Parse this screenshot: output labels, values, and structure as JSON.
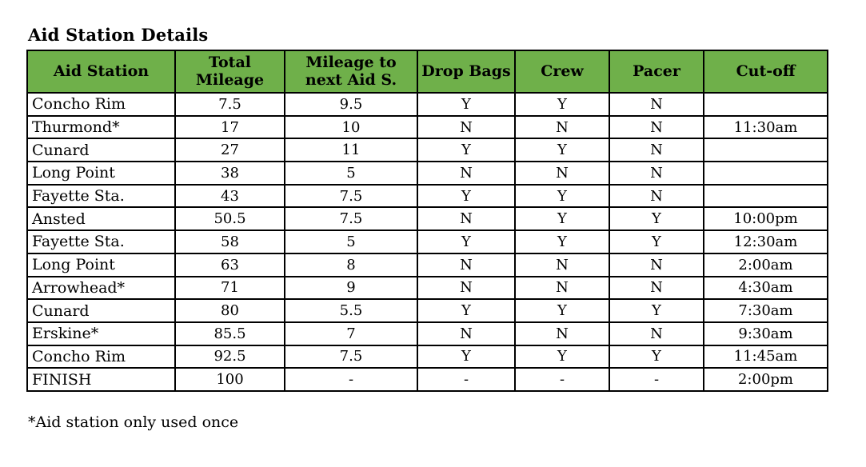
{
  "title": "Aid Station Details",
  "footnote": "*Aid station only used once",
  "colors": {
    "header_bg": "#6fb04a",
    "border": "#000000",
    "text": "#000000",
    "background": "#ffffff"
  },
  "table": {
    "columns": [
      "Aid Station",
      "Total Mileage",
      "Mileage to next Aid S.",
      "Drop Bags",
      "Crew",
      "Pacer",
      "Cut-off"
    ],
    "rows": [
      [
        "Concho Rim",
        "7.5",
        "9.5",
        "Y",
        "Y",
        "N",
        ""
      ],
      [
        "Thurmond*",
        "17",
        "10",
        "N",
        "N",
        "N",
        "11:30am"
      ],
      [
        "Cunard",
        "27",
        "11",
        "Y",
        "Y",
        "N",
        ""
      ],
      [
        "Long Point",
        "38",
        "5",
        "N",
        "N",
        "N",
        ""
      ],
      [
        "Fayette Sta.",
        "43",
        "7.5",
        "Y",
        "Y",
        "N",
        ""
      ],
      [
        "Ansted",
        "50.5",
        "7.5",
        "N",
        "Y",
        "Y",
        "10:00pm"
      ],
      [
        "Fayette Sta.",
        "58",
        "5",
        "Y",
        "Y",
        "Y",
        "12:30am"
      ],
      [
        "Long Point",
        "63",
        "8",
        "N",
        "N",
        "N",
        "2:00am"
      ],
      [
        "Arrowhead*",
        "71",
        "9",
        "N",
        "N",
        "N",
        "4:30am"
      ],
      [
        "Cunard",
        "80",
        "5.5",
        "Y",
        "Y",
        "Y",
        "7:30am"
      ],
      [
        "Erskine*",
        "85.5",
        "7",
        "N",
        "N",
        "N",
        "9:30am"
      ],
      [
        "Concho Rim",
        "92.5",
        "7.5",
        "Y",
        "Y",
        "Y",
        "11:45am"
      ],
      [
        "FINISH",
        "100",
        "-",
        "-",
        "-",
        "-",
        "2:00pm"
      ]
    ]
  }
}
